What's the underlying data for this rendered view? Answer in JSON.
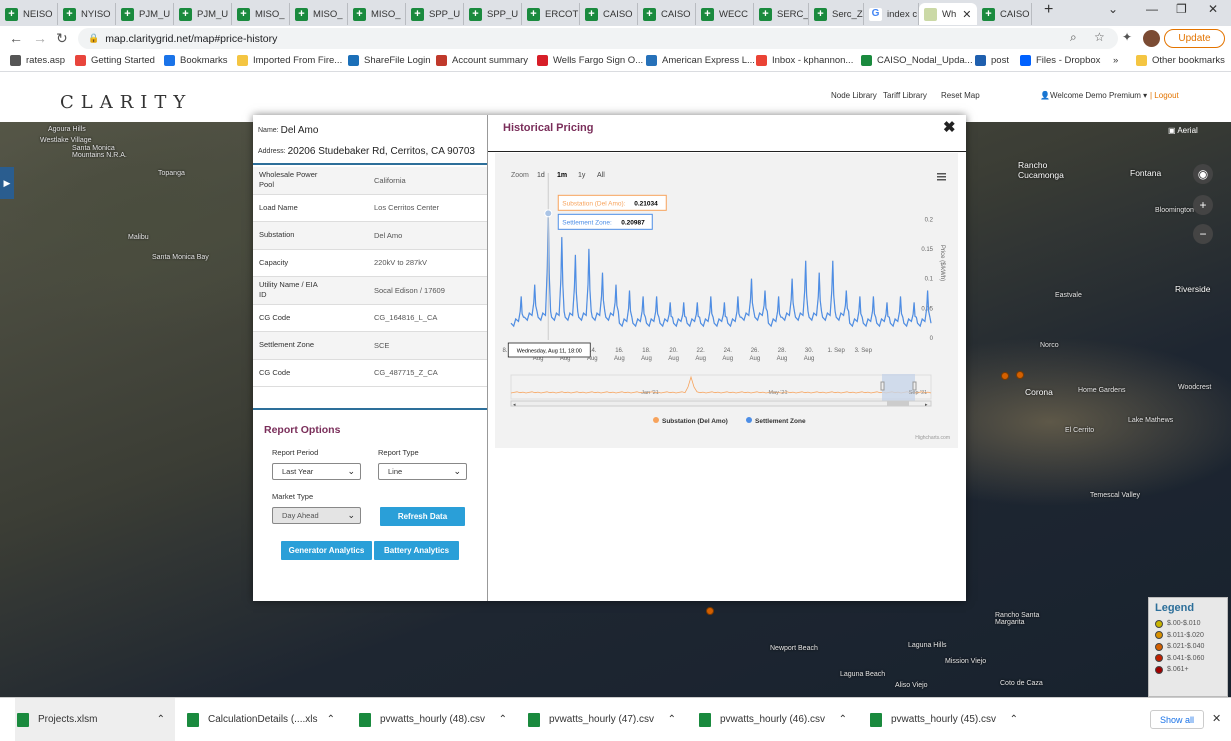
{
  "browser": {
    "tabs": [
      {
        "label": "NEISO",
        "icon": "sheet"
      },
      {
        "label": "NYISO",
        "icon": "sheet"
      },
      {
        "label": "PJM_U",
        "icon": "sheet"
      },
      {
        "label": "PJM_U",
        "icon": "sheet"
      },
      {
        "label": "MISO_",
        "icon": "sheet"
      },
      {
        "label": "MISO_",
        "icon": "sheet"
      },
      {
        "label": "MISO_",
        "icon": "sheet"
      },
      {
        "label": "SPP_U",
        "icon": "sheet"
      },
      {
        "label": "SPP_U",
        "icon": "sheet"
      },
      {
        "label": "ERCOT",
        "icon": "sheet"
      },
      {
        "label": "CAISO",
        "icon": "sheet"
      },
      {
        "label": "CAISO",
        "icon": "sheet"
      },
      {
        "label": "WECC",
        "icon": "sheet"
      },
      {
        "label": "SERC_",
        "icon": "sheet"
      },
      {
        "label": "Serc_Z",
        "icon": "sheet"
      },
      {
        "label": "index c",
        "icon": "google"
      },
      {
        "label": "Wh",
        "icon": "clarity",
        "active": true
      },
      {
        "label": "CAISO",
        "icon": "sheet"
      }
    ],
    "url": "map.claritygrid.net/map#price-history",
    "update_label": "Update",
    "bookmarks": [
      {
        "label": "rates.asp",
        "color": "#555555"
      },
      {
        "label": "Getting Started",
        "color": "#e8453c"
      },
      {
        "label": "Bookmarks",
        "color": "#1a73e8"
      },
      {
        "label": "Imported From Fire...",
        "color": "#f4c542"
      },
      {
        "label": "ShareFile Login",
        "color": "#1b6fb8"
      },
      {
        "label": "Account summary",
        "color": "#c0392b"
      },
      {
        "label": "Wells Fargo Sign O...",
        "color": "#d71e28"
      },
      {
        "label": "American Express L...",
        "color": "#2671b9"
      },
      {
        "label": "Inbox - kphannon...",
        "color": "#ea4335"
      },
      {
        "label": "CAISO_Nodal_Upda...",
        "color": "#1a8a3e"
      },
      {
        "label": "post",
        "color": "#1f5fae"
      },
      {
        "label": "Files - Dropbox",
        "color": "#0061fe"
      }
    ],
    "bookmarks_more": "»",
    "other_bookmarks": "Other bookmarks"
  },
  "site": {
    "logo": "CLARITY",
    "links": [
      "Node Library",
      "Tariff Library",
      "Reset Map"
    ],
    "welcome": "Welcome Demo Premium ▾",
    "logout": "| Logout"
  },
  "map": {
    "aerial_label": "Aerial",
    "labels": [
      {
        "text": "Agoura Hills",
        "big": false
      },
      {
        "text": "Westlake Village",
        "big": false
      },
      {
        "text": "Santa Monica Mountains N.R.A.",
        "big": false
      },
      {
        "text": "Topanga",
        "big": false
      },
      {
        "text": "Malibu",
        "big": false
      },
      {
        "text": "Santa Monica Bay",
        "big": false
      },
      {
        "text": "Rancho Cucamonga",
        "big": true
      },
      {
        "text": "Fontana",
        "big": true
      },
      {
        "text": "Bloomington",
        "big": false
      },
      {
        "text": "Riverside",
        "big": true
      },
      {
        "text": "Eastvale",
        "big": false
      },
      {
        "text": "Norco",
        "big": false
      },
      {
        "text": "Corona",
        "big": true
      },
      {
        "text": "Home Gardens",
        "big": false
      },
      {
        "text": "Woodcrest",
        "big": false
      },
      {
        "text": "El Cerrito",
        "big": false
      },
      {
        "text": "Lake Mathews",
        "big": false
      },
      {
        "text": "Temescal Valley",
        "big": false
      },
      {
        "text": "Newport Beach",
        "big": false
      },
      {
        "text": "Laguna Hills",
        "big": false
      },
      {
        "text": "Mission Viejo",
        "big": false
      },
      {
        "text": "Rancho Santa Margarita",
        "big": false
      },
      {
        "text": "Aliso Viejo",
        "big": false
      },
      {
        "text": "Coto de Caza",
        "big": false
      },
      {
        "text": "Laguna Beach",
        "big": false
      }
    ]
  },
  "legend": {
    "title": "Legend",
    "items": [
      {
        "label": "$.00-$.010",
        "color": "#c8b400"
      },
      {
        "label": "$.011-$.020",
        "color": "#d89000"
      },
      {
        "label": "$.021-$.040",
        "color": "#d46000"
      },
      {
        "label": "$.041-$.060",
        "color": "#c02000"
      },
      {
        "label": "$.061+",
        "color": "#a00000"
      }
    ]
  },
  "node": {
    "name_label": "Name:",
    "name": "Del Amo",
    "address_label": "Address:",
    "address": "20206 Studebaker Rd, Cerritos, CA 90703",
    "details": [
      {
        "key": "Wholesale Power Pool",
        "value": "California"
      },
      {
        "key": "Load Name",
        "value": "Los Cerritos Center"
      },
      {
        "key": "Substation",
        "value": "Del Amo"
      },
      {
        "key": "Capacity",
        "value": "220kV to 287kV"
      },
      {
        "key": "Utility Name / EIA ID",
        "value": "Socal Edison / 17609"
      },
      {
        "key": "CG Code",
        "value": "CG_164816_L_CA"
      },
      {
        "key": "Settlement Zone",
        "value": "SCE"
      },
      {
        "key": "CG Code",
        "value": "CG_487715_Z_CA"
      }
    ]
  },
  "report": {
    "title": "Report Options",
    "period_label": "Report Period",
    "period_value": "Last Year",
    "type_label": "Report Type",
    "type_value": "Line",
    "market_label": "Market Type",
    "market_value": "Day Ahead",
    "refresh_label": "Refresh Data",
    "generator_label": "Generator Analytics",
    "battery_label": "Battery Analytics"
  },
  "historical": {
    "title": "Historical Pricing",
    "close": "✖"
  },
  "chart_data": {
    "type": "line",
    "zoom_label": "Zoom",
    "zoom_options": [
      "1d",
      "1m",
      "1y",
      "All"
    ],
    "zoom_selected": "1m",
    "y_label": "Price ($/kWh)",
    "y_ticks": [
      "0",
      "0.05",
      "0.1",
      "0.15",
      "0.2"
    ],
    "ylim": [
      0,
      0.2
    ],
    "x_ticks": [
      "8. Aug",
      "10. Aug",
      "12. Aug",
      "14. Aug",
      "16. Aug",
      "18. Aug",
      "20. Aug",
      "22. Aug",
      "24. Aug",
      "26. Aug",
      "28. Aug",
      "30. Aug",
      "1. Sep",
      "3. Sep"
    ],
    "x_range_days": [
      8,
      39
    ],
    "series": [
      {
        "name": "Settlement Zone",
        "color": "#4d8ee6",
        "daily_peaks": [
          0.07,
          0.09,
          0.21,
          0.17,
          0.14,
          0.15,
          0.11,
          0.09,
          0.08,
          0.07,
          0.07,
          0.06,
          0.06,
          0.06,
          0.07,
          0.06,
          0.07,
          0.1,
          0.08,
          0.07,
          0.1,
          0.13,
          0.11,
          0.13,
          0.08,
          0.07,
          0.07,
          0.06,
          0.07,
          0.06,
          0.08,
          0.07
        ],
        "daily_troughs": [
          0.02,
          0.03,
          0.03,
          0.03,
          0.03,
          0.03,
          0.03,
          0.03,
          0.02,
          0.02,
          0.02,
          0.02,
          0.02,
          0.02,
          0.02,
          0.02,
          0.02,
          0.03,
          0.03,
          0.02,
          0.03,
          0.03,
          0.03,
          0.03,
          0.03,
          0.02,
          0.02,
          0.02,
          0.02,
          0.02,
          0.02,
          0.02
        ]
      },
      {
        "name": "Substation (Del Amo)",
        "color": "#f7a35c"
      }
    ],
    "tooltip": {
      "substation_label": "Substation (Del Amo):",
      "substation_value": "0.21034",
      "zone_label": "Settlement Zone:",
      "zone_value": "0.20987"
    },
    "crosshair_label": "Wednesday, Aug 11, 18:00",
    "navigator_labels": [
      "Jan '21",
      "May '21",
      "Sep '21"
    ],
    "credits": "Highcharts.com",
    "menu_icon": "hamburger-icon"
  },
  "downloads": {
    "items": [
      "Projects.xlsm",
      "CalculationDetails (....xls",
      "pvwatts_hourly (48).csv",
      "pvwatts_hourly (47).csv",
      "pvwatts_hourly (46).csv",
      "pvwatts_hourly (45).csv"
    ],
    "show_all": "Show all"
  }
}
